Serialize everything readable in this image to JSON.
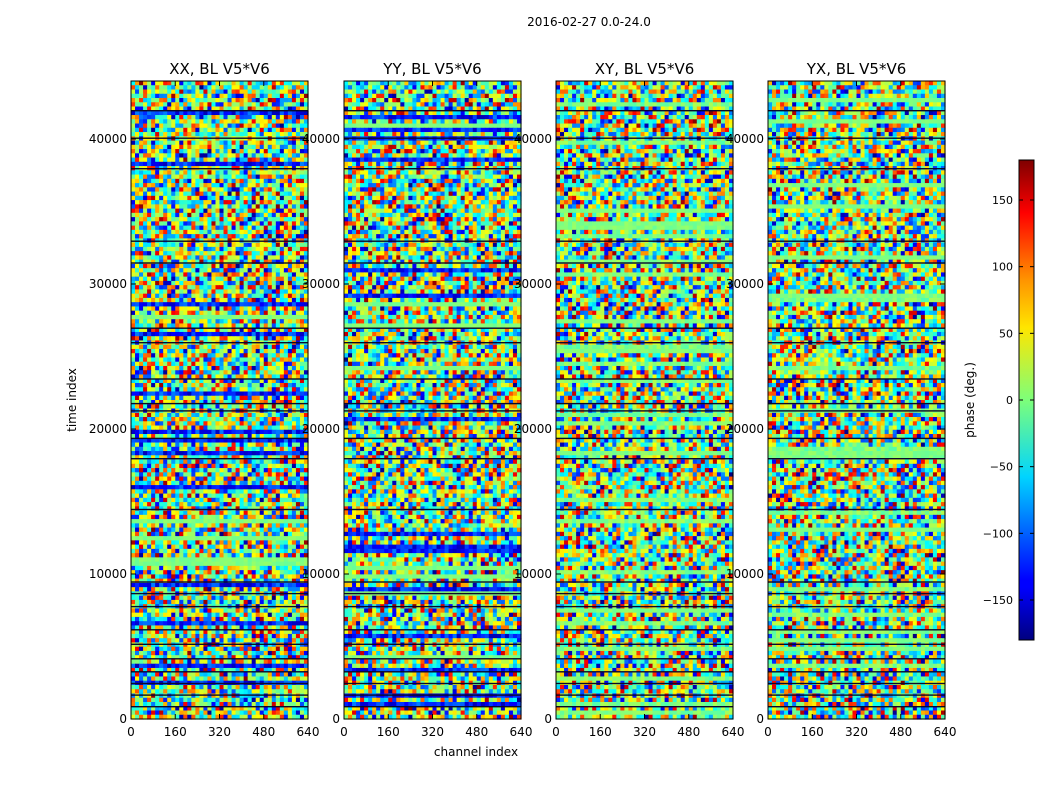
{
  "figure_title": "2016-02-27 0.0-24.0",
  "chart_data": [
    {
      "type": "heatmap",
      "title": "XX, BL V5*V6",
      "xlabel": "",
      "ylabel": "time index",
      "xlim": [
        0,
        640
      ],
      "ylim": [
        0,
        44000
      ],
      "x_ticks": [
        0,
        160,
        320,
        480,
        640
      ],
      "y_ticks": [
        0,
        10000,
        20000,
        30000,
        40000
      ],
      "x_tick_labels": [
        "0",
        "160",
        "320",
        "480",
        "640"
      ],
      "y_tick_labels": [
        "0",
        "10000",
        "20000",
        "30000",
        "40000"
      ],
      "value": "phase (deg.)",
      "colormap": "jet",
      "vmin": -180,
      "vmax": 180
    },
    {
      "type": "heatmap",
      "title": "YY, BL V5*V6",
      "xlabel": "channel index",
      "ylabel": "",
      "xlim": [
        0,
        640
      ],
      "ylim": [
        0,
        44000
      ],
      "x_ticks": [
        0,
        160,
        320,
        480,
        640
      ],
      "y_ticks": [
        0,
        10000,
        20000,
        30000,
        40000
      ],
      "x_tick_labels": [
        "0",
        "160",
        "320",
        "480",
        "640"
      ],
      "y_tick_labels": [
        "0",
        "10000",
        "20000",
        "30000",
        "40000"
      ],
      "value": "phase (deg.)",
      "colormap": "jet",
      "vmin": -180,
      "vmax": 180
    },
    {
      "type": "heatmap",
      "title": "XY, BL V5*V6",
      "xlabel": "",
      "ylabel": "",
      "xlim": [
        0,
        640
      ],
      "ylim": [
        0,
        44000
      ],
      "x_ticks": [
        0,
        160,
        320,
        480,
        640
      ],
      "y_ticks": [
        0,
        10000,
        20000,
        30000,
        40000
      ],
      "x_tick_labels": [
        "0",
        "160",
        "320",
        "480",
        "640"
      ],
      "y_tick_labels": [
        "0",
        "10000",
        "20000",
        "30000",
        "40000"
      ],
      "value": "phase (deg.)",
      "colormap": "jet",
      "vmin": -180,
      "vmax": 180
    },
    {
      "type": "heatmap",
      "title": "YX, BL V5*V6",
      "xlabel": "",
      "ylabel": "",
      "xlim": [
        0,
        640
      ],
      "ylim": [
        0,
        44000
      ],
      "x_ticks": [
        0,
        160,
        320,
        480,
        640
      ],
      "y_ticks": [
        0,
        10000,
        20000,
        30000,
        40000
      ],
      "x_tick_labels": [
        "0",
        "160",
        "320",
        "480",
        "640"
      ],
      "y_tick_labels": [
        "0",
        "10000",
        "20000",
        "30000",
        "40000"
      ],
      "value": "phase (deg.)",
      "colormap": "jet",
      "vmin": -180,
      "vmax": 180
    }
  ],
  "colorbar": {
    "label": "phase (deg.)",
    "ticks": [
      -150,
      -100,
      -50,
      0,
      50,
      100,
      150
    ],
    "tick_labels": [
      "−150",
      "−100",
      "−50",
      "0",
      "50",
      "100",
      "150"
    ],
    "vmin": -180,
    "vmax": 180,
    "colormap": "jet"
  }
}
